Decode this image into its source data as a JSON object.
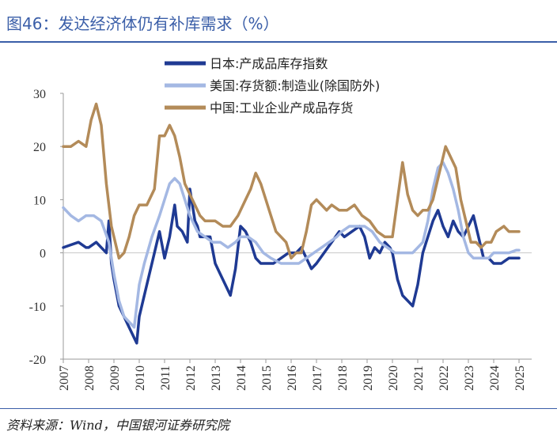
{
  "title": "图46：发达经济体仍有补库需求（%）",
  "source": "资料来源：Wind，中国银河证券研究院",
  "chart_data": {
    "type": "line",
    "title": "图46：发达经济体仍有补库需求（%）",
    "xlabel": "",
    "ylabel": "",
    "ylim": [
      -20,
      30
    ],
    "yticks": [
      -20,
      -10,
      0,
      10,
      20,
      30
    ],
    "xlim": [
      2007,
      2025.5
    ],
    "xticks": [
      "2007",
      "2008",
      "2009",
      "2010",
      "2011",
      "2012",
      "2013",
      "2014",
      "2015",
      "2016",
      "2017",
      "2018",
      "2019",
      "2020",
      "2021",
      "2022",
      "2023",
      "2024",
      "2025"
    ],
    "legend_position": "top",
    "series": [
      {
        "name": "日本:产成品库存指数",
        "color": "#1f3a93",
        "x": [
          2007.0,
          2007.3,
          2007.6,
          2007.9,
          2008.0,
          2008.3,
          2008.5,
          2008.7,
          2008.8,
          2008.9,
          2009.0,
          2009.2,
          2009.4,
          2009.6,
          2009.8,
          2009.9,
          2010.0,
          2010.3,
          2010.6,
          2010.8,
          2011.0,
          2011.2,
          2011.4,
          2011.5,
          2011.7,
          2011.9,
          2012.0,
          2012.2,
          2012.3,
          2012.4,
          2012.6,
          2012.8,
          2013.0,
          2013.2,
          2013.4,
          2013.6,
          2013.8,
          2014.0,
          2014.2,
          2014.4,
          2014.6,
          2014.8,
          2015.0,
          2015.3,
          2015.6,
          2015.9,
          2016.2,
          2016.4,
          2016.6,
          2016.8,
          2017.0,
          2017.3,
          2017.6,
          2017.9,
          2018.1,
          2018.4,
          2018.7,
          2018.9,
          2019.1,
          2019.3,
          2019.5,
          2019.7,
          2019.9,
          2020.0,
          2020.2,
          2020.4,
          2020.6,
          2020.8,
          2021.0,
          2021.2,
          2021.4,
          2021.6,
          2021.8,
          2022.0,
          2022.2,
          2022.4,
          2022.6,
          2022.8,
          2023.0,
          2023.2,
          2023.4,
          2023.6,
          2023.8,
          2024.0,
          2024.3,
          2024.6,
          2024.9,
          2025.0
        ],
        "values": [
          1,
          1.5,
          2,
          1,
          1,
          2,
          1,
          0,
          6,
          -2,
          -5,
          -10,
          -12,
          -14,
          -16,
          -17,
          -12,
          -6,
          0,
          4,
          -1,
          3,
          9,
          5,
          4,
          2,
          12,
          6,
          5,
          3,
          3,
          3,
          -2,
          -4,
          -6,
          -8,
          -3,
          5,
          4,
          2,
          -1,
          -2,
          -2,
          -2,
          -1,
          0,
          0,
          1,
          -1,
          -3,
          -2,
          0,
          2,
          4,
          3,
          4,
          5,
          3,
          -1,
          1,
          0,
          2,
          1,
          0,
          -5,
          -8,
          -9,
          -10,
          -6,
          0,
          3,
          6,
          8,
          5,
          3,
          6,
          4,
          3,
          5,
          7,
          3,
          -1,
          -1,
          -2,
          -2,
          -1,
          -1,
          -1
        ]
      },
      {
        "name": "美国:存货额:制造业(除国防外)",
        "color": "#a4b8e3",
        "x": [
          2007.0,
          2007.3,
          2007.6,
          2007.9,
          2008.2,
          2008.5,
          2008.8,
          2009.0,
          2009.2,
          2009.4,
          2009.6,
          2009.8,
          2009.9,
          2010.0,
          2010.2,
          2010.5,
          2010.8,
          2011.0,
          2011.2,
          2011.4,
          2011.6,
          2011.8,
          2012.0,
          2012.3,
          2012.6,
          2012.9,
          2013.2,
          2013.5,
          2013.8,
          2014.0,
          2014.3,
          2014.6,
          2014.9,
          2015.2,
          2015.6,
          2016.0,
          2016.3,
          2016.6,
          2016.9,
          2017.2,
          2017.5,
          2017.8,
          2018.0,
          2018.3,
          2018.6,
          2018.9,
          2019.2,
          2019.5,
          2019.8,
          2020.1,
          2020.4,
          2020.6,
          2020.8,
          2021.0,
          2021.2,
          2021.4,
          2021.6,
          2021.8,
          2022.0,
          2022.2,
          2022.4,
          2022.6,
          2022.8,
          2023.0,
          2023.2,
          2023.4,
          2023.6,
          2023.8,
          2024.0,
          2024.3,
          2024.6,
          2024.9,
          2025.0
        ],
        "values": [
          8.5,
          7,
          6,
          7,
          7,
          6,
          2,
          -4,
          -9,
          -12,
          -13,
          -14,
          -10,
          -6,
          -2,
          3,
          7,
          10,
          13,
          14,
          13,
          10,
          7,
          4,
          3,
          2,
          2,
          1,
          2,
          3,
          3,
          2,
          0,
          -1,
          -2,
          -2,
          -2,
          -1,
          0,
          1,
          2,
          3,
          4,
          5,
          5,
          5,
          4,
          2,
          1,
          0,
          0,
          0,
          0,
          1,
          2,
          6,
          12,
          16,
          17,
          15,
          12,
          8,
          3,
          0,
          -1,
          -1,
          -1,
          -1,
          0,
          0,
          0,
          0.5,
          0.5
        ]
      },
      {
        "name": "中国:工业企业产成品存货",
        "color": "#b38b59",
        "x": [
          2007.0,
          2007.3,
          2007.6,
          2007.9,
          2008.1,
          2008.3,
          2008.5,
          2008.7,
          2008.9,
          2009.0,
          2009.2,
          2009.4,
          2009.6,
          2009.8,
          2010.0,
          2010.3,
          2010.6,
          2010.8,
          2011.0,
          2011.2,
          2011.4,
          2011.6,
          2011.8,
          2012.0,
          2012.2,
          2012.4,
          2012.6,
          2012.8,
          2013.0,
          2013.3,
          2013.6,
          2013.9,
          2014.2,
          2014.4,
          2014.6,
          2014.8,
          2015.0,
          2015.2,
          2015.4,
          2015.6,
          2015.8,
          2016.0,
          2016.2,
          2016.4,
          2016.6,
          2016.8,
          2017.0,
          2017.2,
          2017.4,
          2017.6,
          2017.9,
          2018.2,
          2018.5,
          2018.8,
          2019.1,
          2019.4,
          2019.7,
          2020.0,
          2020.2,
          2020.4,
          2020.6,
          2020.8,
          2021.0,
          2021.2,
          2021.4,
          2021.6,
          2021.8,
          2022.0,
          2022.1,
          2022.3,
          2022.5,
          2022.7,
          2022.9,
          2023.1,
          2023.3,
          2023.5,
          2023.7,
          2023.9,
          2024.1,
          2024.4,
          2024.6,
          2024.9,
          2025.0
        ],
        "values": [
          20,
          20,
          21,
          20,
          25,
          28,
          24,
          13,
          5,
          3,
          -1,
          0,
          3,
          7,
          9,
          9,
          12,
          22,
          22,
          24,
          22,
          18,
          13,
          11,
          9,
          7,
          6,
          6,
          6,
          5,
          5,
          7,
          10,
          12,
          15,
          13,
          10,
          7,
          4,
          3,
          2,
          -1,
          0,
          0,
          4,
          9,
          10,
          9,
          8,
          9,
          8,
          8,
          9,
          7,
          6,
          4,
          3,
          3,
          10,
          17,
          11,
          8,
          7,
          8,
          8,
          10,
          14,
          18,
          20,
          18,
          16,
          10,
          6,
          2,
          2,
          1,
          2,
          2,
          4,
          5,
          4,
          4,
          4
        ]
      }
    ]
  }
}
